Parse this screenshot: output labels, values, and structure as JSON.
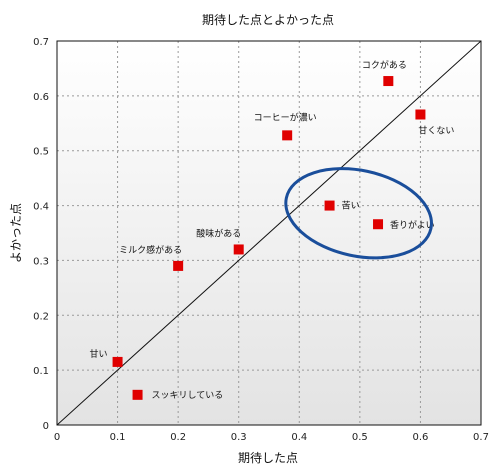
{
  "chart_data": {
    "type": "scatter",
    "title": "期待した点とよかった点",
    "xlabel": "期待した点",
    "ylabel": "よかった点",
    "xlim": [
      0,
      0.7
    ],
    "ylim": [
      0,
      0.7
    ],
    "xticks": [
      "0",
      "0.1",
      "0.2",
      "0.3",
      "0.4",
      "0.5",
      "0.6",
      "0.7"
    ],
    "yticks": [
      "0",
      "0.1",
      "0.2",
      "0.3",
      "0.4",
      "0.5",
      "0.6",
      "0.7"
    ],
    "grid": true,
    "reference_line": {
      "x": [
        0,
        0.7
      ],
      "y": [
        0,
        0.7
      ]
    },
    "points": [
      {
        "label": "甘い",
        "x": 0.1,
        "y": 0.115
      },
      {
        "label": "スッキリしている",
        "x": 0.133,
        "y": 0.055
      },
      {
        "label": "ミルク感がある",
        "x": 0.2,
        "y": 0.29
      },
      {
        "label": "酸味がある",
        "x": 0.3,
        "y": 0.32
      },
      {
        "label": "コーヒーが濃い",
        "x": 0.38,
        "y": 0.528
      },
      {
        "label": "コクがある",
        "x": 0.547,
        "y": 0.627
      },
      {
        "label": "甘くない",
        "x": 0.6,
        "y": 0.566
      },
      {
        "label": "苦い",
        "x": 0.45,
        "y": 0.4
      },
      {
        "label": "香りがよい",
        "x": 0.53,
        "y": 0.366
      }
    ],
    "highlight": {
      "shape": "ellipse",
      "cx": 0.498,
      "cy": 0.386,
      "rx": 0.122,
      "ry": 0.078,
      "color": "#1a4e9b",
      "encloses": [
        "苦い",
        "香りがよい"
      ]
    },
    "colors": {
      "marker": "#e00000",
      "line": "#111111",
      "grid": "#9a9a9a"
    }
  }
}
